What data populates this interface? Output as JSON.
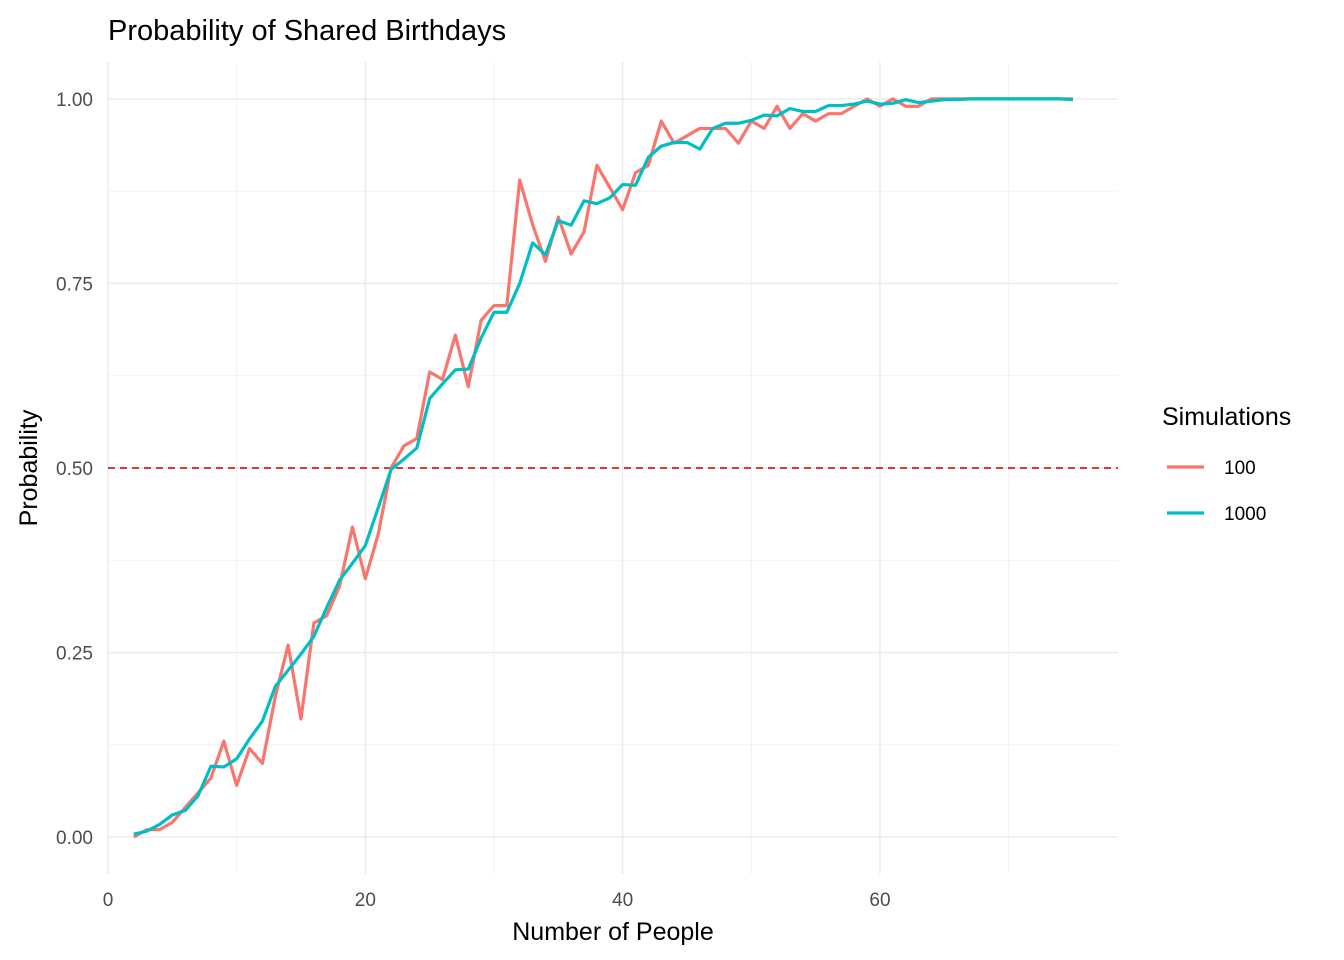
{
  "chart_data": {
    "type": "line",
    "title": "Probability of Shared Birthdays",
    "xlabel": "Number of People",
    "ylabel": "Probability",
    "xlim": [
      0,
      78.5
    ],
    "ylim": [
      -0.05,
      1.05
    ],
    "x_ticks": [
      0,
      20,
      40,
      60
    ],
    "x_tick_labels": [
      "0",
      "20",
      "40",
      "60"
    ],
    "y_ticks": [
      0,
      0.25,
      0.5,
      0.75,
      1
    ],
    "y_tick_labels": [
      "0.00",
      "0.25",
      "0.50",
      "0.75",
      "1.00"
    ],
    "grid": true,
    "reference_line": {
      "y": 0.5,
      "style": "dashed",
      "color": "#e41a1c"
    },
    "legend": {
      "title": "Simulations",
      "position": "right"
    },
    "x": [
      2,
      3,
      4,
      5,
      6,
      7,
      8,
      9,
      10,
      11,
      12,
      13,
      14,
      15,
      16,
      17,
      18,
      19,
      20,
      21,
      22,
      23,
      24,
      25,
      26,
      27,
      28,
      29,
      30,
      31,
      32,
      33,
      34,
      35,
      36,
      37,
      38,
      39,
      40,
      41,
      42,
      43,
      44,
      45,
      46,
      47,
      48,
      49,
      50,
      51,
      52,
      53,
      54,
      55,
      56,
      57,
      58,
      59,
      60,
      61,
      62,
      63,
      64,
      65,
      66,
      67,
      68,
      69,
      70,
      71,
      72,
      73,
      74,
      75
    ],
    "series": [
      {
        "name": "100",
        "color": "#F8766D",
        "values": [
          0.0,
          0.01,
          0.01,
          0.02,
          0.04,
          0.06,
          0.08,
          0.13,
          0.07,
          0.12,
          0.1,
          0.19,
          0.26,
          0.16,
          0.29,
          0.3,
          0.34,
          0.42,
          0.35,
          0.41,
          0.5,
          0.53,
          0.54,
          0.63,
          0.62,
          0.68,
          0.61,
          0.7,
          0.72,
          0.72,
          0.89,
          0.83,
          0.78,
          0.84,
          0.79,
          0.82,
          0.91,
          0.88,
          0.85,
          0.9,
          0.91,
          0.97,
          0.94,
          0.95,
          0.96,
          0.96,
          0.96,
          0.94,
          0.97,
          0.96,
          0.99,
          0.96,
          0.98,
          0.97,
          0.98,
          0.98,
          0.99,
          1.0,
          0.99,
          1.0,
          0.99,
          0.99,
          1.0,
          1.0,
          1.0,
          1.0,
          1.0,
          1.0,
          1.0,
          1.0,
          1.0,
          1.0,
          1.0,
          1.0
        ]
      },
      {
        "name": "1000",
        "color": "#00BFC4",
        "values": [
          0.004,
          0.008,
          0.017,
          0.03,
          0.036,
          0.056,
          0.096,
          0.095,
          0.106,
          0.133,
          0.157,
          0.204,
          0.226,
          0.248,
          0.272,
          0.311,
          0.348,
          0.371,
          0.395,
          0.446,
          0.498,
          0.512,
          0.527,
          0.594,
          0.614,
          0.633,
          0.634,
          0.676,
          0.711,
          0.711,
          0.75,
          0.805,
          0.789,
          0.835,
          0.829,
          0.862,
          0.858,
          0.866,
          0.884,
          0.883,
          0.921,
          0.936,
          0.941,
          0.941,
          0.932,
          0.96,
          0.967,
          0.967,
          0.971,
          0.978,
          0.977,
          0.987,
          0.983,
          0.983,
          0.991,
          0.991,
          0.993,
          0.997,
          0.993,
          0.994,
          0.999,
          0.995,
          0.997,
          0.999,
          0.999,
          1.0,
          1.0,
          1.0,
          1.0,
          1.0,
          1.0,
          1.0,
          1.0,
          0.999
        ]
      }
    ]
  }
}
